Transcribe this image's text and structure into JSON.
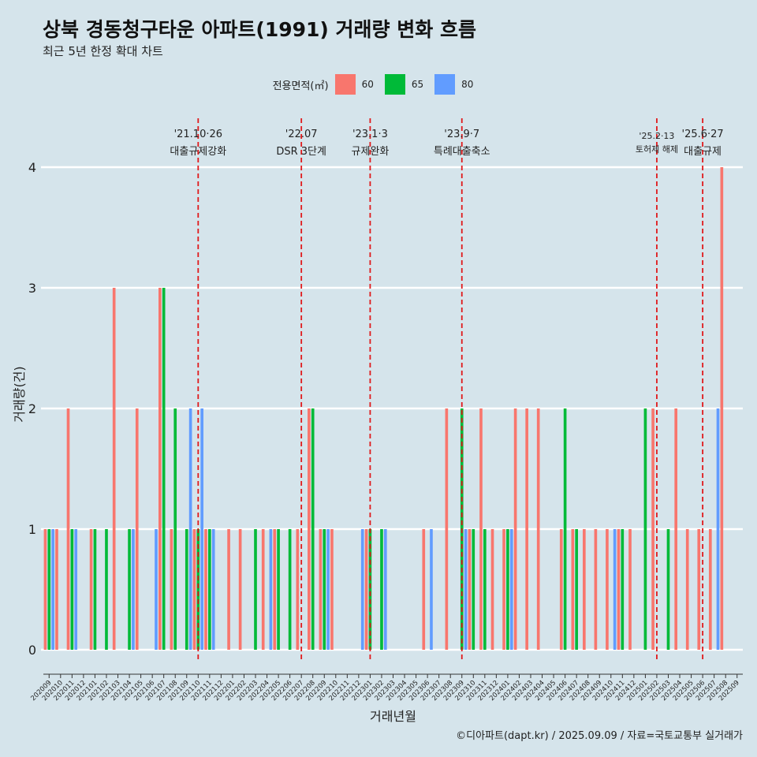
{
  "chart_data": {
    "type": "bar",
    "title": "상북 경동청구타운 아파트(1991) 거래량 변화 흐름",
    "subtitle": "최근 5년 한정 확대 차트",
    "xlabel": "거래년월",
    "ylabel": "거래량(건)",
    "ylim": [
      0,
      4
    ],
    "yticks": [
      "0",
      "1",
      "2",
      "3",
      "4"
    ],
    "grid": true,
    "legend": {
      "title": "전용면적(㎡)",
      "position": "top"
    },
    "caption": "©디아파트(dapt.kr) / 2025.09.09 / 자료=국토교통부 실거래가",
    "categories": [
      "202009",
      "202010",
      "202011",
      "202012",
      "202101",
      "202102",
      "202103",
      "202104",
      "202105",
      "202106",
      "202107",
      "202108",
      "202109",
      "202110",
      "202111",
      "202112",
      "202201",
      "202202",
      "202203",
      "202204",
      "202205",
      "202206",
      "202207",
      "202208",
      "202209",
      "202210",
      "202211",
      "202212",
      "202301",
      "202302",
      "202303",
      "202304",
      "202305",
      "202306",
      "202307",
      "202308",
      "202309",
      "202310",
      "202311",
      "202312",
      "202401",
      "202402",
      "202403",
      "202404",
      "202405",
      "202406",
      "202407",
      "202408",
      "202409",
      "202410",
      "202411",
      "202412",
      "202501",
      "202502",
      "202503",
      "202504",
      "202505",
      "202506",
      "202507",
      "202508",
      "202509"
    ],
    "series": [
      {
        "name": "60",
        "color": "#f8766d",
        "values": [
          1,
          1,
          2,
          0,
          1,
          0,
          3,
          0,
          2,
          0,
          3,
          1,
          0,
          1,
          1,
          0,
          1,
          1,
          0,
          1,
          1,
          0,
          1,
          2,
          1,
          1,
          0,
          0,
          1,
          0,
          0,
          0,
          0,
          1,
          0,
          2,
          0,
          1,
          2,
          1,
          1,
          2,
          2,
          2,
          0,
          1,
          1,
          1,
          1,
          1,
          1,
          1,
          0,
          2,
          0,
          2,
          1,
          1,
          1,
          4,
          0
        ]
      },
      {
        "name": "65",
        "color": "#00ba38",
        "values": [
          1,
          0,
          1,
          0,
          1,
          1,
          0,
          1,
          0,
          0,
          3,
          2,
          1,
          1,
          1,
          0,
          0,
          0,
          1,
          0,
          1,
          1,
          0,
          2,
          1,
          0,
          0,
          0,
          1,
          1,
          0,
          0,
          0,
          0,
          0,
          0,
          2,
          1,
          1,
          0,
          1,
          0,
          0,
          0,
          0,
          2,
          1,
          0,
          0,
          0,
          1,
          0,
          2,
          0,
          1,
          0,
          0,
          0,
          0,
          0,
          0
        ]
      },
      {
        "name": "80",
        "color": "#619cff",
        "values": [
          1,
          0,
          1,
          0,
          0,
          0,
          0,
          1,
          0,
          1,
          0,
          0,
          2,
          2,
          1,
          0,
          0,
          0,
          0,
          1,
          0,
          0,
          0,
          0,
          1,
          0,
          0,
          1,
          0,
          1,
          0,
          0,
          0,
          1,
          0,
          0,
          1,
          0,
          0,
          0,
          1,
          0,
          0,
          0,
          0,
          0,
          0,
          0,
          0,
          1,
          0,
          0,
          0,
          0,
          0,
          0,
          0,
          0,
          2,
          0,
          0
        ]
      }
    ],
    "events": [
      {
        "at": "202110",
        "date": "'21.10·26",
        "label": "대출규제강화"
      },
      {
        "at": "202207",
        "date": "'22.07",
        "label": "DSR 3단계"
      },
      {
        "at": "202301",
        "date": "'23.1·3",
        "label": "규제완화"
      },
      {
        "at": "202309",
        "date": "'23.9·7",
        "label": "특례대출축소"
      },
      {
        "at": "202502",
        "date": "'25.2·13",
        "label": "토허제 해제"
      },
      {
        "at": "202506",
        "date": "'25.6·27",
        "label": "대출규제"
      }
    ]
  }
}
